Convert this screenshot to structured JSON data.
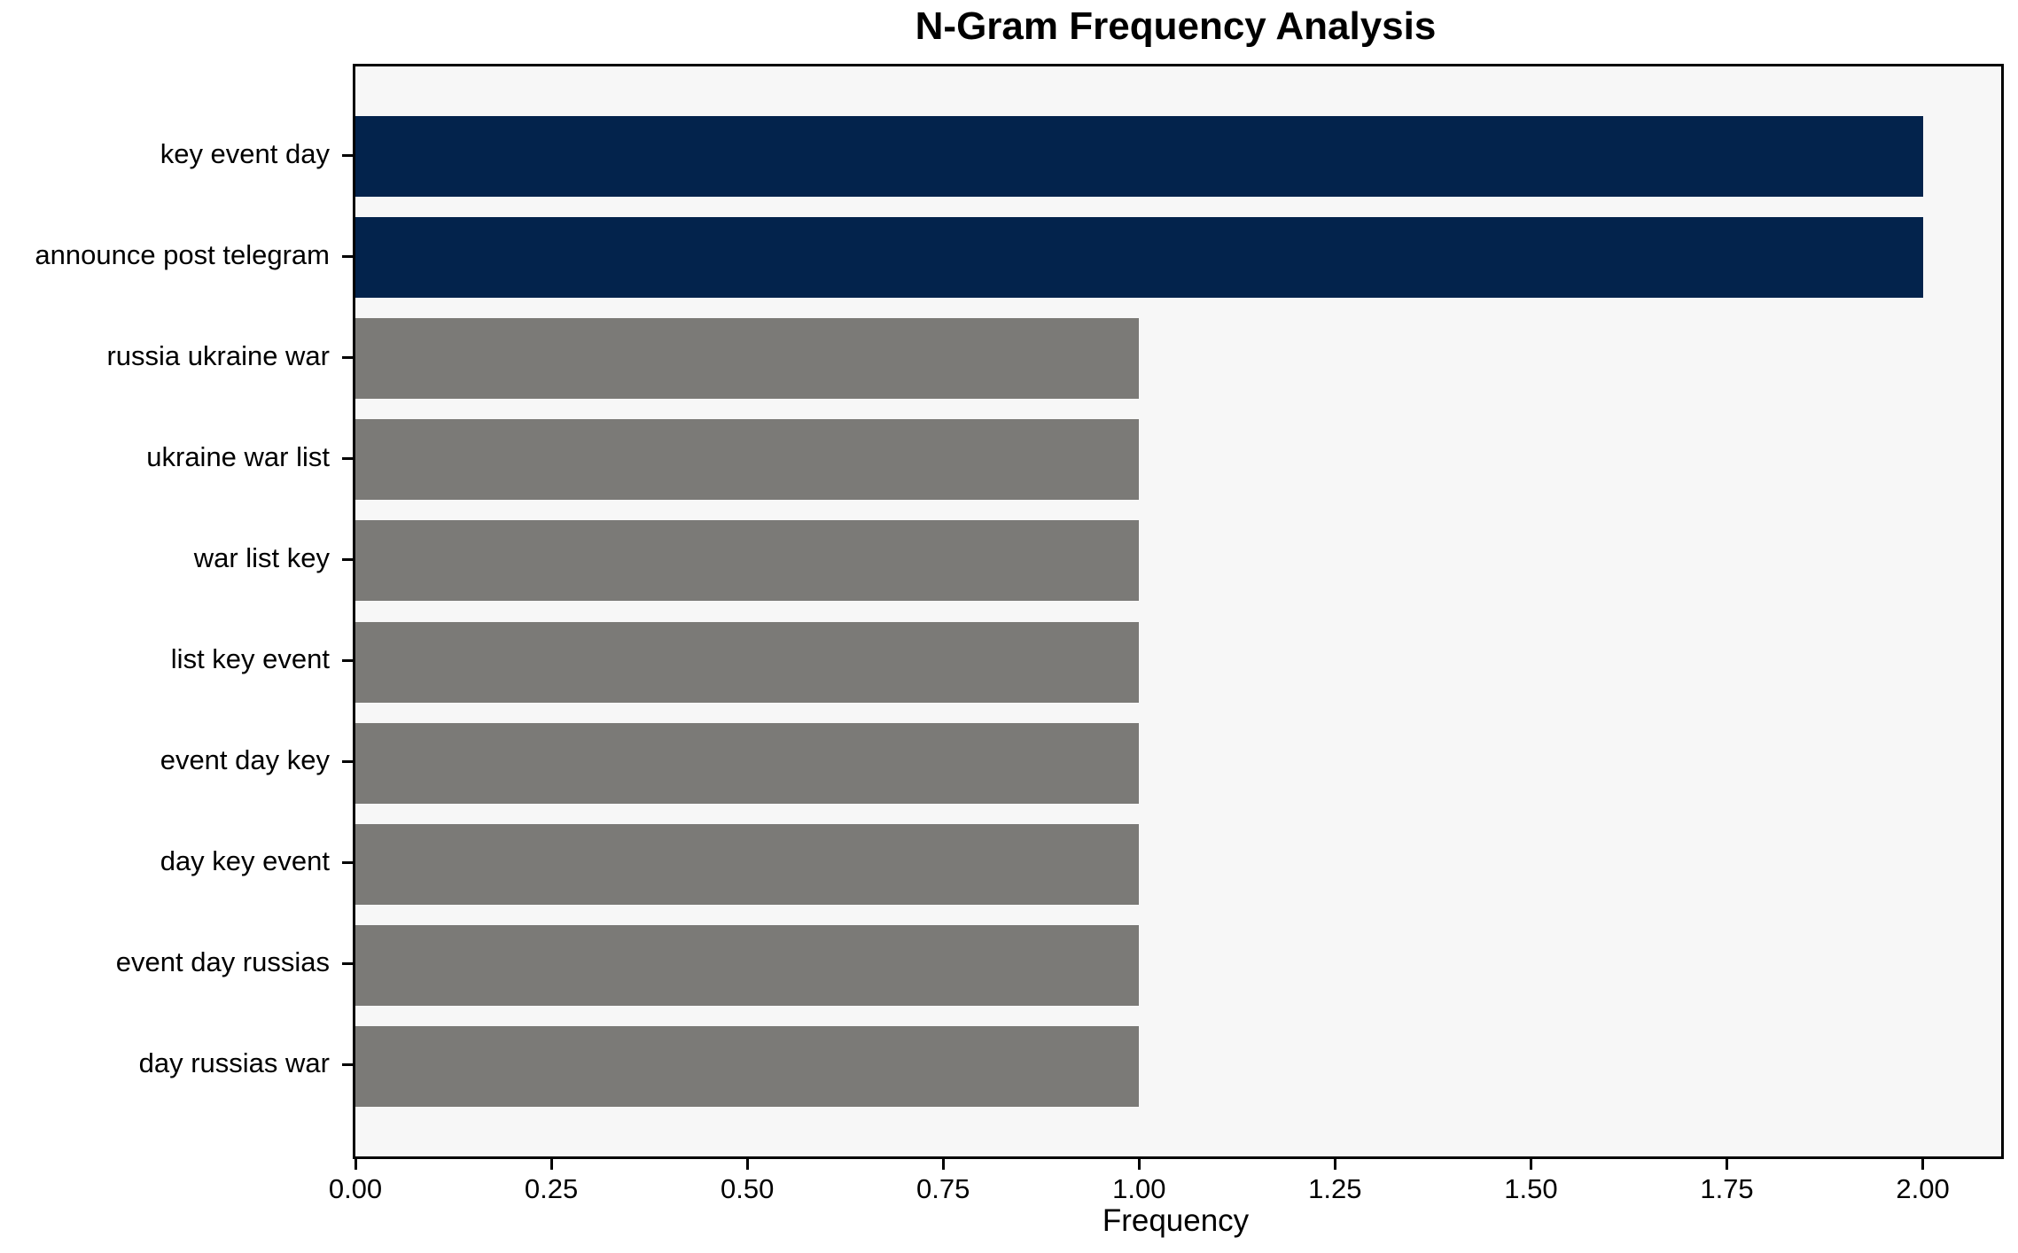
{
  "chart_data": {
    "type": "bar",
    "orientation": "horizontal",
    "title": "N-Gram Frequency Analysis",
    "xlabel": "Frequency",
    "ylabel": "",
    "categories": [
      "key event day",
      "announce post telegram",
      "russia ukraine war",
      "ukraine war list",
      "war list key",
      "list key event",
      "event day key",
      "day key event",
      "event day russias",
      "day russias war"
    ],
    "values": [
      2,
      2,
      1,
      1,
      1,
      1,
      1,
      1,
      1,
      1
    ],
    "bar_colors": [
      "#03234c",
      "#03234c",
      "#7b7a77",
      "#7b7a77",
      "#7b7a77",
      "#7b7a77",
      "#7b7a77",
      "#7b7a77",
      "#7b7a77",
      "#7b7a77"
    ],
    "xlim": [
      0,
      2.1
    ],
    "xticks": [
      0.0,
      0.25,
      0.5,
      0.75,
      1.0,
      1.25,
      1.5,
      1.75,
      2.0
    ],
    "xtick_labels": [
      "0.00",
      "0.25",
      "0.50",
      "0.75",
      "1.00",
      "1.25",
      "1.50",
      "1.75",
      "2.00"
    ],
    "grid": false,
    "legend": null,
    "colors": {
      "highlight": "#03234c",
      "default": "#7b7a77",
      "plot_background": "#f7f7f7",
      "figure_background": "#ffffff",
      "spine": "#000000",
      "text": "#000000"
    }
  }
}
